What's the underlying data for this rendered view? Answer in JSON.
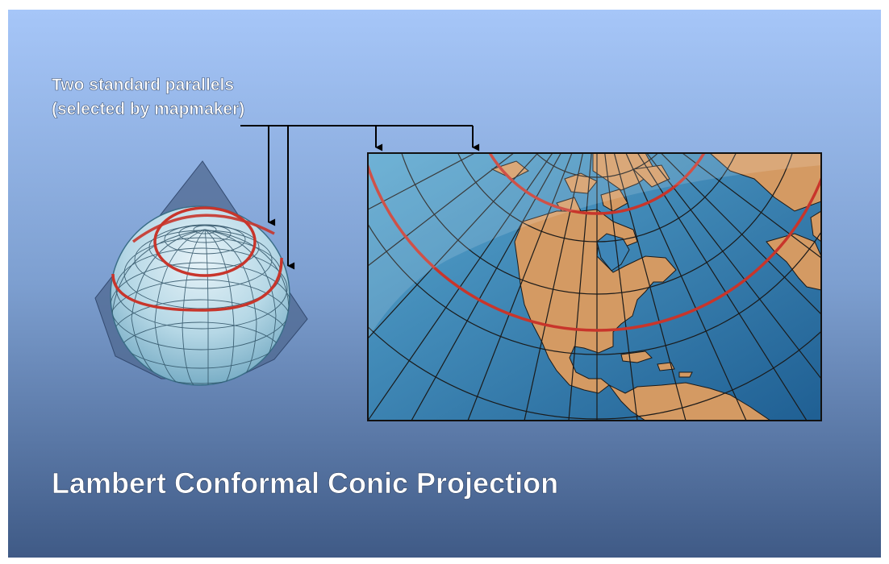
{
  "annotation": {
    "line1": "Two standard parallels",
    "line2": "(selected by mapmaker)"
  },
  "title": "Lambert Conformal Conic Projection",
  "colors": {
    "background_top": "#a3c3f7",
    "background_bottom": "#3f5a86",
    "parallel_red": "#c8352b",
    "ocean": "#3f8cc0",
    "land": "#d49a63",
    "graticule": "#1a1a1a",
    "arrow": "#000000",
    "cone": "#4f6890"
  }
}
